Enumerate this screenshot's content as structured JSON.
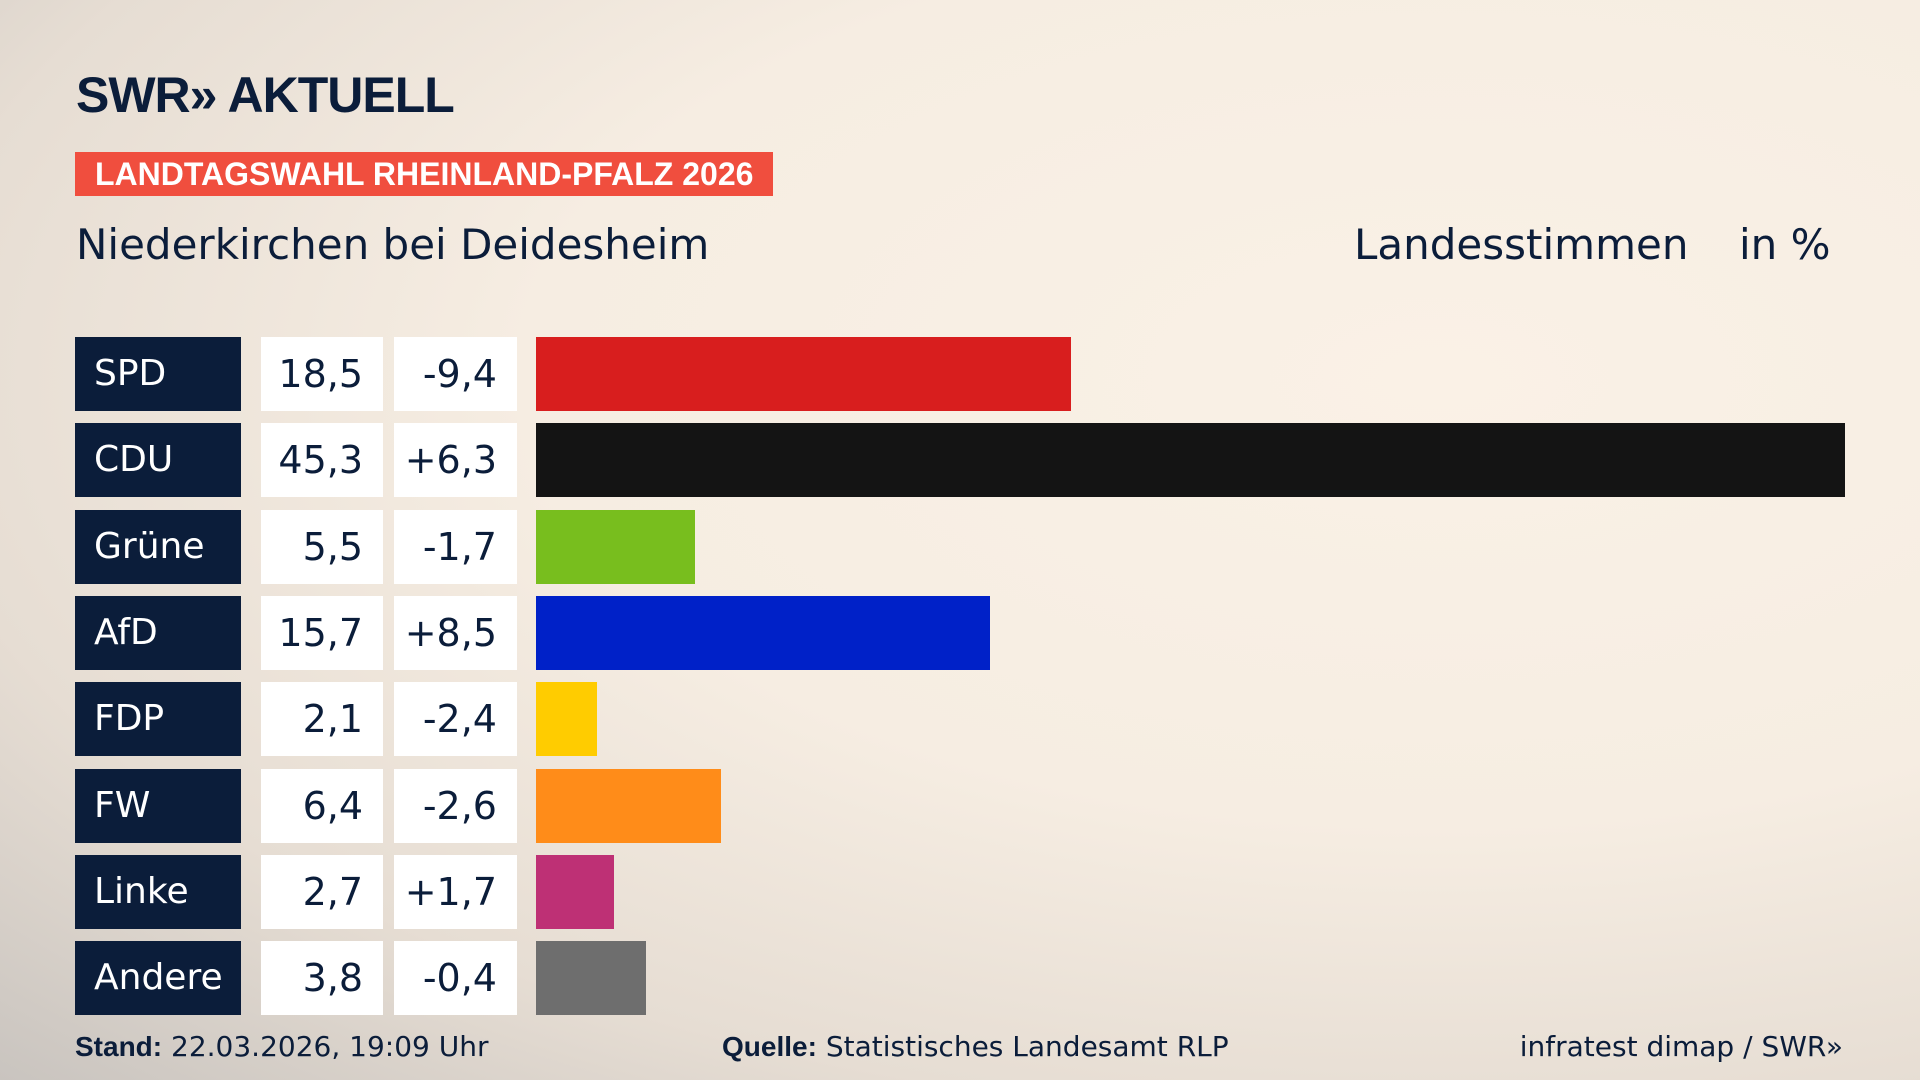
{
  "header": {
    "logo": "SWR» AKTUELL",
    "banner": "LANDTAGSWAHL RHEINLAND-PFALZ 2026",
    "location": "Niederkirchen bei Deidesheim",
    "vote_type": "Landesstimmen",
    "unit": "in %"
  },
  "chart_data": {
    "type": "bar",
    "orientation": "horizontal",
    "xlim": [
      0,
      45.3
    ],
    "categories": [
      "SPD",
      "CDU",
      "Grüne",
      "AfD",
      "FDP",
      "FW",
      "Linke",
      "Andere"
    ],
    "values": [
      "18,5",
      "45,3",
      "5,5",
      "15,7",
      "2,1",
      "6,4",
      "2,7",
      "3,8"
    ],
    "numeric_values": [
      18.5,
      45.3,
      5.5,
      15.7,
      2.1,
      6.4,
      2.7,
      3.8
    ],
    "changes": [
      "-9,4",
      "+6,3",
      "-1,7",
      "+8,5",
      "-2,4",
      "-2,6",
      "+1,7",
      "-0,4"
    ],
    "colors": [
      "#d81e1e",
      "#141414",
      "#78be1e",
      "#0021c8",
      "#ffcc00",
      "#ff8c19",
      "#be3075",
      "#6e6e6e"
    ]
  },
  "footer": {
    "stand_label": "Stand:",
    "stand_value": "22.03.2026, 19:09 Uhr",
    "source_label": "Quelle:",
    "source_value": "Statistisches Landesamt RLP",
    "credit": "infratest dimap / SWR»"
  }
}
